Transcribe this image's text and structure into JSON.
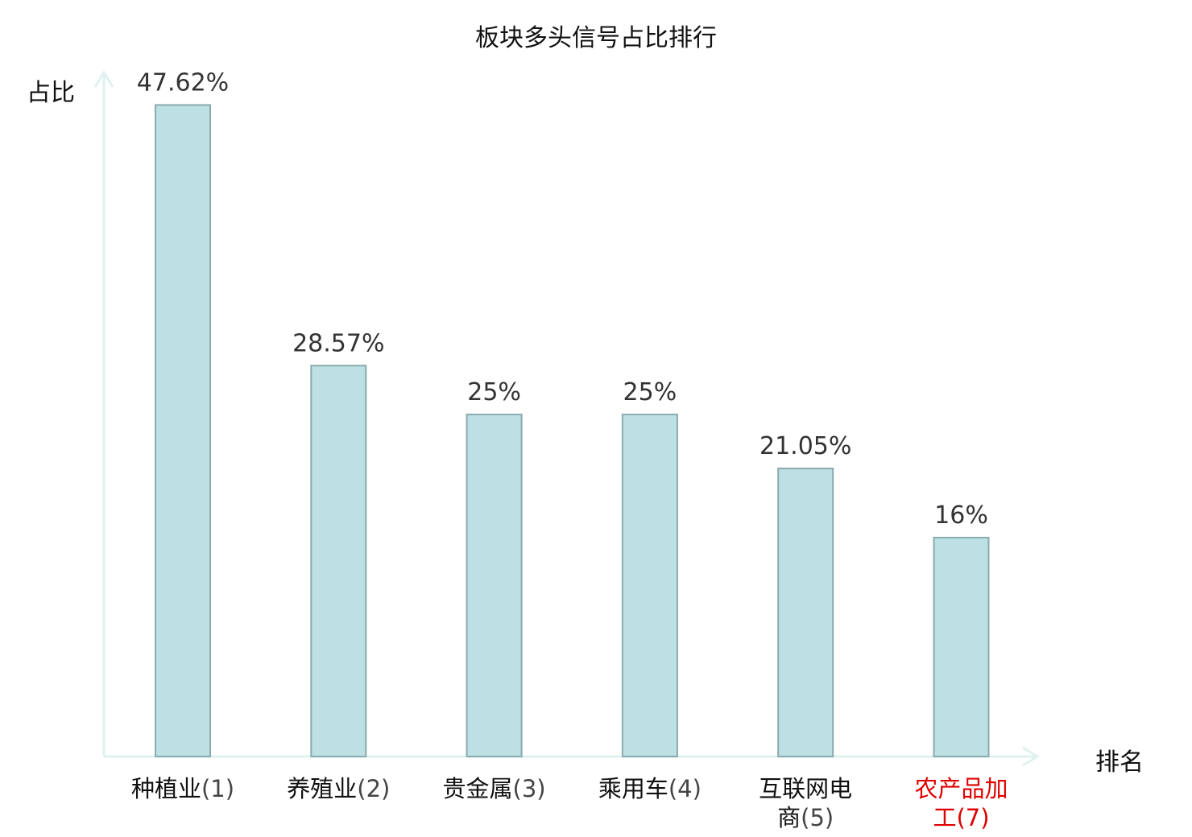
{
  "chart_data": {
    "type": "bar",
    "title": "板块多头信号占比排行",
    "ylabel": "占比",
    "xlabel": "排名",
    "ylim": [
      0,
      50
    ],
    "grid": false,
    "legend": "none",
    "categories": [
      {
        "name": "种植业",
        "rank": "(1)",
        "highlight": false
      },
      {
        "name": "养殖业",
        "rank": "(2)",
        "highlight": false
      },
      {
        "name": "贵金属",
        "rank": "(3)",
        "highlight": false
      },
      {
        "name": "乘用车",
        "rank": "(4)",
        "highlight": false
      },
      {
        "name": "互联网电商",
        "rank": "(5)",
        "highlight": false
      },
      {
        "name": "农产品加工",
        "rank": "(7)",
        "highlight": true
      }
    ],
    "values": [
      47.62,
      28.57,
      25,
      25,
      21.05,
      16
    ],
    "value_labels": [
      "47.62%",
      "28.57%",
      "25%",
      "25%",
      "21.05%",
      "16%"
    ],
    "colors": {
      "bar_fill": "#bce0e3",
      "bar_stroke": "#8aaaad",
      "axis": "#dff2ef",
      "highlight_text": "#e00000"
    }
  }
}
